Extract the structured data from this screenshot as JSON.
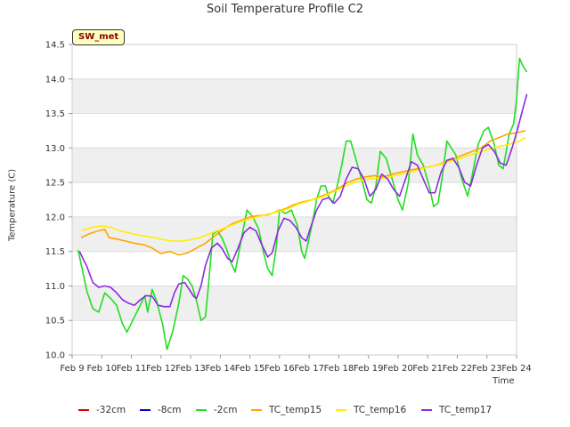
{
  "chart_data": {
    "type": "line",
    "title": "Soil Temperature Profile C2",
    "badge": "SW_met",
    "xlabel": "Time",
    "ylabel": "Temperature (C)",
    "xlim": [
      0,
      15
    ],
    "ylim": [
      10.0,
      14.5
    ],
    "grid": "horizontal bands",
    "legend_position": "bottom",
    "x_ticks": [
      {
        "label": "Feb 9",
        "value": 0
      },
      {
        "label": "Feb 10",
        "value": 1
      },
      {
        "label": "Feb 11",
        "value": 2
      },
      {
        "label": "Feb 12",
        "value": 3
      },
      {
        "label": "Feb 13",
        "value": 4
      },
      {
        "label": "Feb 14",
        "value": 5
      },
      {
        "label": "Feb 15",
        "value": 6
      },
      {
        "label": "Feb 16",
        "value": 7
      },
      {
        "label": "Feb 17",
        "value": 8
      },
      {
        "label": "Feb 18",
        "value": 9
      },
      {
        "label": "Feb 19",
        "value": 10
      },
      {
        "label": "Feb 20",
        "value": 11
      },
      {
        "label": "Feb 21",
        "value": 12
      },
      {
        "label": "Feb 22",
        "value": 13
      },
      {
        "label": "Feb 23",
        "value": 14
      },
      {
        "label": "Feb 24",
        "value": 15
      }
    ],
    "y_ticks": [
      "10.0",
      "10.5",
      "11.0",
      "11.5",
      "12.0",
      "12.5",
      "13.0",
      "13.5",
      "14.0",
      "14.5"
    ],
    "series": [
      {
        "name": "-32cm",
        "color": "#cc0000",
        "points": []
      },
      {
        "name": "-8cm",
        "color": "#0000cc",
        "points": []
      },
      {
        "name": "-2cm",
        "color": "#22dd22",
        "points": [
          [
            0.2,
            11.52
          ],
          [
            0.5,
            10.92
          ],
          [
            0.7,
            10.67
          ],
          [
            0.9,
            10.62
          ],
          [
            1.1,
            10.9
          ],
          [
            1.3,
            10.82
          ],
          [
            1.5,
            10.72
          ],
          [
            1.7,
            10.45
          ],
          [
            1.85,
            10.33
          ],
          [
            2.1,
            10.55
          ],
          [
            2.3,
            10.72
          ],
          [
            2.45,
            10.86
          ],
          [
            2.55,
            10.62
          ],
          [
            2.7,
            10.95
          ],
          [
            2.85,
            10.78
          ],
          [
            3.05,
            10.45
          ],
          [
            3.2,
            10.08
          ],
          [
            3.4,
            10.35
          ],
          [
            3.6,
            10.75
          ],
          [
            3.75,
            11.15
          ],
          [
            3.9,
            11.1
          ],
          [
            4.05,
            11.0
          ],
          [
            4.2,
            10.78
          ],
          [
            4.35,
            10.5
          ],
          [
            4.5,
            10.55
          ],
          [
            4.6,
            11.0
          ],
          [
            4.75,
            11.75
          ],
          [
            4.9,
            11.8
          ],
          [
            5.05,
            11.7
          ],
          [
            5.2,
            11.55
          ],
          [
            5.35,
            11.35
          ],
          [
            5.5,
            11.2
          ],
          [
            5.7,
            11.65
          ],
          [
            5.9,
            12.1
          ],
          [
            6.1,
            12.0
          ],
          [
            6.3,
            11.82
          ],
          [
            6.45,
            11.5
          ],
          [
            6.6,
            11.25
          ],
          [
            6.75,
            11.15
          ],
          [
            6.9,
            11.6
          ],
          [
            7.0,
            12.1
          ],
          [
            7.2,
            12.05
          ],
          [
            7.4,
            12.1
          ],
          [
            7.6,
            11.88
          ],
          [
            7.75,
            11.5
          ],
          [
            7.85,
            11.4
          ],
          [
            7.95,
            11.6
          ],
          [
            8.1,
            11.9
          ],
          [
            8.25,
            12.25
          ],
          [
            8.4,
            12.45
          ],
          [
            8.55,
            12.45
          ],
          [
            8.65,
            12.3
          ],
          [
            8.8,
            12.2
          ],
          [
            8.95,
            12.45
          ],
          [
            9.1,
            12.75
          ],
          [
            9.25,
            13.1
          ],
          [
            9.4,
            13.1
          ],
          [
            9.6,
            12.8
          ],
          [
            9.8,
            12.5
          ],
          [
            9.95,
            12.25
          ],
          [
            10.1,
            12.2
          ],
          [
            10.25,
            12.45
          ],
          [
            10.4,
            12.95
          ],
          [
            10.6,
            12.85
          ],
          [
            10.8,
            12.55
          ],
          [
            11.0,
            12.25
          ],
          [
            11.15,
            12.1
          ],
          [
            11.35,
            12.5
          ],
          [
            11.5,
            13.2
          ],
          [
            11.65,
            12.9
          ],
          [
            11.85,
            12.75
          ],
          [
            12.05,
            12.45
          ],
          [
            12.2,
            12.15
          ],
          [
            12.35,
            12.2
          ],
          [
            12.5,
            12.6
          ],
          [
            12.65,
            13.1
          ],
          [
            12.8,
            13.0
          ],
          [
            12.95,
            12.9
          ],
          [
            13.15,
            12.55
          ],
          [
            13.35,
            12.3
          ],
          [
            13.5,
            12.6
          ],
          [
            13.7,
            13.05
          ],
          [
            13.9,
            13.25
          ],
          [
            14.05,
            13.3
          ],
          [
            14.25,
            13.05
          ],
          [
            14.4,
            12.75
          ],
          [
            14.55,
            12.7
          ],
          [
            14.75,
            13.2
          ],
          [
            14.9,
            13.35
          ],
          [
            15.0,
            13.7
          ],
          [
            15.1,
            14.3
          ],
          [
            15.2,
            14.2
          ],
          [
            15.35,
            14.1
          ]
        ]
      },
      {
        "name": "TC_temp15",
        "color": "#ffa500",
        "points": [
          [
            0.3,
            11.7
          ],
          [
            0.6,
            11.76
          ],
          [
            0.9,
            11.8
          ],
          [
            1.1,
            11.82
          ],
          [
            1.25,
            11.7
          ],
          [
            1.5,
            11.68
          ],
          [
            1.8,
            11.65
          ],
          [
            2.1,
            11.62
          ],
          [
            2.4,
            11.6
          ],
          [
            2.7,
            11.55
          ],
          [
            3.0,
            11.47
          ],
          [
            3.3,
            11.5
          ],
          [
            3.6,
            11.45
          ],
          [
            3.9,
            11.48
          ],
          [
            4.2,
            11.55
          ],
          [
            4.5,
            11.62
          ],
          [
            4.8,
            11.72
          ],
          [
            5.1,
            11.82
          ],
          [
            5.4,
            11.9
          ],
          [
            5.7,
            11.95
          ],
          [
            6.0,
            12.0
          ],
          [
            6.3,
            12.02
          ],
          [
            6.6,
            12.03
          ],
          [
            6.9,
            12.08
          ],
          [
            7.2,
            12.12
          ],
          [
            7.5,
            12.18
          ],
          [
            7.8,
            12.22
          ],
          [
            8.1,
            12.25
          ],
          [
            8.4,
            12.3
          ],
          [
            8.7,
            12.35
          ],
          [
            9.0,
            12.42
          ],
          [
            9.3,
            12.5
          ],
          [
            9.6,
            12.55
          ],
          [
            9.9,
            12.58
          ],
          [
            10.2,
            12.6
          ],
          [
            10.5,
            12.58
          ],
          [
            10.8,
            12.62
          ],
          [
            11.1,
            12.65
          ],
          [
            11.4,
            12.68
          ],
          [
            11.7,
            12.7
          ],
          [
            12.0,
            12.72
          ],
          [
            12.3,
            12.75
          ],
          [
            12.6,
            12.8
          ],
          [
            12.9,
            12.85
          ],
          [
            13.2,
            12.9
          ],
          [
            13.5,
            12.95
          ],
          [
            13.8,
            13.0
          ],
          [
            14.1,
            13.1
          ],
          [
            14.4,
            13.15
          ],
          [
            14.7,
            13.2
          ],
          [
            15.0,
            13.22
          ],
          [
            15.3,
            13.25
          ]
        ]
      },
      {
        "name": "TC_temp16",
        "color": "#ffee00",
        "points": [
          [
            0.3,
            11.8
          ],
          [
            0.7,
            11.85
          ],
          [
            1.0,
            11.87
          ],
          [
            1.3,
            11.85
          ],
          [
            1.6,
            11.8
          ],
          [
            1.9,
            11.77
          ],
          [
            2.2,
            11.74
          ],
          [
            2.5,
            11.72
          ],
          [
            2.8,
            11.7
          ],
          [
            3.1,
            11.67
          ],
          [
            3.4,
            11.65
          ],
          [
            3.7,
            11.65
          ],
          [
            4.0,
            11.67
          ],
          [
            4.3,
            11.7
          ],
          [
            4.6,
            11.75
          ],
          [
            4.9,
            11.8
          ],
          [
            5.2,
            11.85
          ],
          [
            5.5,
            11.9
          ],
          [
            5.8,
            11.95
          ],
          [
            6.1,
            11.98
          ],
          [
            6.4,
            12.02
          ],
          [
            6.7,
            12.05
          ],
          [
            7.0,
            12.08
          ],
          [
            7.3,
            12.12
          ],
          [
            7.6,
            12.18
          ],
          [
            7.9,
            12.22
          ],
          [
            8.2,
            12.26
          ],
          [
            8.5,
            12.3
          ],
          [
            8.8,
            12.36
          ],
          [
            9.1,
            12.42
          ],
          [
            9.4,
            12.48
          ],
          [
            9.7,
            12.52
          ],
          [
            10.0,
            12.55
          ],
          [
            10.3,
            12.56
          ],
          [
            10.6,
            12.57
          ],
          [
            10.9,
            12.6
          ],
          [
            11.2,
            12.63
          ],
          [
            11.5,
            12.66
          ],
          [
            11.8,
            12.7
          ],
          [
            12.1,
            12.73
          ],
          [
            12.4,
            12.76
          ],
          [
            12.7,
            12.8
          ],
          [
            13.0,
            12.83
          ],
          [
            13.3,
            12.88
          ],
          [
            13.6,
            12.92
          ],
          [
            13.9,
            12.96
          ],
          [
            14.2,
            13.0
          ],
          [
            14.5,
            13.03
          ],
          [
            14.8,
            13.06
          ],
          [
            15.1,
            13.1
          ],
          [
            15.3,
            13.15
          ]
        ]
      },
      {
        "name": "TC_temp17",
        "color": "#8a2be2",
        "points": [
          [
            0.25,
            11.5
          ],
          [
            0.5,
            11.28
          ],
          [
            0.7,
            11.05
          ],
          [
            0.9,
            10.98
          ],
          [
            1.1,
            11.0
          ],
          [
            1.3,
            10.98
          ],
          [
            1.5,
            10.9
          ],
          [
            1.7,
            10.8
          ],
          [
            1.9,
            10.75
          ],
          [
            2.1,
            10.72
          ],
          [
            2.3,
            10.8
          ],
          [
            2.5,
            10.86
          ],
          [
            2.7,
            10.85
          ],
          [
            2.9,
            10.72
          ],
          [
            3.1,
            10.7
          ],
          [
            3.3,
            10.7
          ],
          [
            3.45,
            10.9
          ],
          [
            3.6,
            11.03
          ],
          [
            3.8,
            11.05
          ],
          [
            3.95,
            10.95
          ],
          [
            4.1,
            10.85
          ],
          [
            4.2,
            10.82
          ],
          [
            4.35,
            11.0
          ],
          [
            4.5,
            11.3
          ],
          [
            4.7,
            11.55
          ],
          [
            4.9,
            11.62
          ],
          [
            5.05,
            11.55
          ],
          [
            5.25,
            11.4
          ],
          [
            5.4,
            11.35
          ],
          [
            5.6,
            11.55
          ],
          [
            5.8,
            11.77
          ],
          [
            6.0,
            11.85
          ],
          [
            6.2,
            11.8
          ],
          [
            6.4,
            11.6
          ],
          [
            6.6,
            11.42
          ],
          [
            6.75,
            11.48
          ],
          [
            6.95,
            11.8
          ],
          [
            7.15,
            11.98
          ],
          [
            7.35,
            11.95
          ],
          [
            7.55,
            11.85
          ],
          [
            7.75,
            11.7
          ],
          [
            7.9,
            11.65
          ],
          [
            8.05,
            11.85
          ],
          [
            8.25,
            12.1
          ],
          [
            8.45,
            12.25
          ],
          [
            8.65,
            12.28
          ],
          [
            8.85,
            12.2
          ],
          [
            9.05,
            12.3
          ],
          [
            9.25,
            12.55
          ],
          [
            9.45,
            12.72
          ],
          [
            9.65,
            12.7
          ],
          [
            9.85,
            12.55
          ],
          [
            10.05,
            12.3
          ],
          [
            10.25,
            12.4
          ],
          [
            10.45,
            12.62
          ],
          [
            10.65,
            12.55
          ],
          [
            10.85,
            12.4
          ],
          [
            11.05,
            12.3
          ],
          [
            11.25,
            12.55
          ],
          [
            11.45,
            12.8
          ],
          [
            11.65,
            12.75
          ],
          [
            11.85,
            12.55
          ],
          [
            12.05,
            12.35
          ],
          [
            12.25,
            12.35
          ],
          [
            12.45,
            12.65
          ],
          [
            12.65,
            12.82
          ],
          [
            12.85,
            12.85
          ],
          [
            13.05,
            12.72
          ],
          [
            13.25,
            12.5
          ],
          [
            13.45,
            12.45
          ],
          [
            13.65,
            12.75
          ],
          [
            13.85,
            13.0
          ],
          [
            14.05,
            13.05
          ],
          [
            14.25,
            12.95
          ],
          [
            14.45,
            12.78
          ],
          [
            14.65,
            12.75
          ],
          [
            14.85,
            13.0
          ],
          [
            15.05,
            13.3
          ],
          [
            15.2,
            13.55
          ],
          [
            15.35,
            13.78
          ]
        ]
      }
    ]
  }
}
